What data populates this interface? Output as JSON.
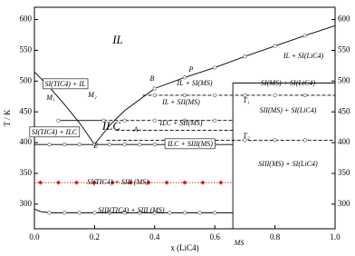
{
  "chart_data": {
    "type": "phase-diagram",
    "x_label": "x (LiC4)",
    "y_label": "T / K",
    "xlim": [
      0,
      1.0
    ],
    "ylim": [
      260,
      620
    ],
    "xticks": [
      {
        "value": 0,
        "label": "0.0"
      },
      {
        "value": 0.2,
        "label": "0.2"
      },
      {
        "value": 0.4,
        "label": "0.4"
      },
      {
        "value": 0.6,
        "label": "0.6"
      },
      {
        "value": 0.8,
        "label": "0.8"
      },
      {
        "value": 1.0,
        "label": "1.0"
      }
    ],
    "yticks": [
      300,
      350,
      400,
      450,
      500,
      550,
      600
    ],
    "lines": [
      {
        "style": "solid",
        "color": "#000000",
        "x": [
          0,
          0.05,
          0.1,
          0.15,
          0.2
        ],
        "values": [
          515,
          490,
          462,
          432,
          397
        ]
      },
      {
        "style": "solid",
        "color": "#000000",
        "x": [
          0.2,
          0.25,
          0.3,
          0.4,
          0.5,
          0.6,
          0.7,
          0.8,
          0.9,
          1.0
        ],
        "values": [
          397,
          428,
          452,
          488,
          506,
          522,
          540,
          557,
          574,
          590
        ]
      },
      {
        "style": "solid",
        "color": "#000000",
        "x": [
          0.66,
          1.0
        ],
        "values": [
          497,
          497
        ]
      },
      {
        "style": "dash",
        "color": "#000000",
        "x": [
          0.36,
          1.0
        ],
        "values": [
          477,
          477
        ]
      },
      {
        "style": "solid",
        "color": "#000000",
        "x": [
          0.08,
          0.23
        ],
        "values": [
          436,
          436
        ]
      },
      {
        "style": "dash",
        "color": "#000000",
        "x": [
          0.23,
          0.66
        ],
        "values": [
          436,
          436
        ]
      },
      {
        "style": "dash",
        "color": "#000000",
        "x": [
          0.27,
          0.66
        ],
        "values": [
          420,
          420
        ]
      },
      {
        "style": "dash",
        "color": "#000000",
        "x": [
          0.24,
          1.0
        ],
        "values": [
          404,
          404
        ]
      },
      {
        "style": "solid",
        "color": "#000000",
        "x": [
          0,
          0.66
        ],
        "values": [
          397,
          397
        ]
      },
      {
        "style": "dot",
        "color": "#e8141a",
        "x": [
          0,
          0.66
        ],
        "values": [
          335,
          335
        ]
      },
      {
        "style": "solid",
        "color": "#000000",
        "x": [
          0,
          0.02,
          0.05,
          0.66
        ],
        "values": [
          292,
          288,
          286,
          286
        ]
      },
      {
        "style": "solid",
        "color": "#000000",
        "x": [
          0.66,
          0.66
        ],
        "values": [
          260,
          497
        ]
      }
    ],
    "open_points": {
      "x": [
        0.05,
        0.1,
        0.15,
        0.2,
        0.25,
        0.3,
        0.35,
        0.4,
        0.45,
        0.5,
        0.55,
        0.6,
        0.05,
        0.1,
        0.15,
        0.2,
        0.25,
        0.3,
        0.35,
        0.4,
        0.45,
        0.5,
        0.55,
        0.6,
        0.4,
        0.5,
        0.6,
        0.7,
        0.8,
        0.9,
        0.7,
        0.8,
        0.9,
        0.3,
        0.4,
        0.5,
        0.6,
        0.08,
        0.23,
        0.4,
        0.5,
        0.6,
        0.7,
        0.8,
        0.9
      ],
      "values": [
        397,
        397,
        397,
        397,
        397,
        397,
        397,
        397,
        397,
        397,
        397,
        397,
        286,
        286,
        286,
        286,
        286,
        286,
        286,
        286,
        286,
        286,
        286,
        286,
        477,
        477,
        477,
        477,
        477,
        477,
        404,
        404,
        404,
        436,
        436,
        436,
        436,
        436,
        436,
        488,
        506,
        522,
        540,
        557,
        574
      ]
    },
    "red_points": {
      "x": [
        0.02,
        0.08,
        0.14,
        0.2,
        0.26,
        0.32,
        0.38,
        0.44,
        0.5,
        0.56,
        0.62
      ],
      "values": [
        335,
        335,
        335,
        335,
        335,
        335,
        335,
        335,
        335,
        335,
        335
      ],
      "color": "#e8141a"
    },
    "annotations": [
      "IL",
      "IL + SI(LiC4)",
      "SI(TIC4) + IL",
      "M₁",
      "M₂",
      "B",
      "P",
      "IL + SI(MS)",
      "SI(MS) + SI(LiC4)",
      "IL + SII(MS)",
      "T₁",
      "SII(MS) + SI(LiC4)",
      "ILC + SII(MS)",
      "ILC",
      "A",
      "T₂",
      "SI(TIC4) + ILC",
      "E",
      "ILC + SIII(MS)",
      "SIII(MS) + SI(LiC4)",
      "SI(TIC4) + SIII (MS)",
      "SIII(TIC4) + SIII (MS)",
      "MS"
    ]
  }
}
